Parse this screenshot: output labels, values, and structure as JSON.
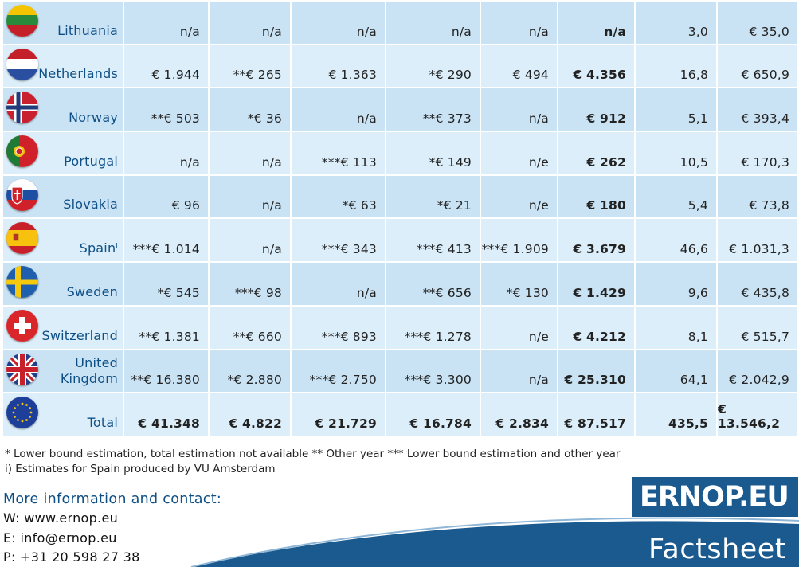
{
  "rows": [
    {
      "country": "Lithuania",
      "c1": "n/a",
      "c2": "n/a",
      "c3": "n/a",
      "c4": "n/a",
      "c5": "n/a",
      "c6": "n/a",
      "c7": "3,0",
      "c8": "€ 35,0"
    },
    {
      "country": "Netherlands",
      "c1": "€ 1.944",
      "c2": "**€ 265",
      "c3": "€ 1.363",
      "c4": "*€ 290",
      "c5": "€ 494",
      "c6": "€ 4.356",
      "c7": "16,8",
      "c8": "€ 650,9"
    },
    {
      "country": "Norway",
      "c1": "**€ 503",
      "c2": "*€ 36",
      "c3": "n/a",
      "c4": "**€ 373",
      "c5": "n/a",
      "c6": "€ 912",
      "c7": "5,1",
      "c8": "€ 393,4"
    },
    {
      "country": "Portugal",
      "c1": "n/a",
      "c2": "n/a",
      "c3": "***€ 113",
      "c4": "*€ 149",
      "c5": "n/e",
      "c6": "€ 262",
      "c7": "10,5",
      "c8": "€ 170,3"
    },
    {
      "country": "Slovakia",
      "c1": "€ 96",
      "c2": "n/a",
      "c3": "*€ 63",
      "c4": "*€ 21",
      "c5": "n/e",
      "c6": "€ 180",
      "c7": "5,4",
      "c8": "€ 73,8"
    },
    {
      "country": "Spain",
      "sup": "i",
      "c1": "***€ 1.014",
      "c2": "n/a",
      "c3": "***€ 343",
      "c4": "***€ 413",
      "c5": "***€ 1.909",
      "c6": "€ 3.679",
      "c7": "46,6",
      "c8": "€ 1.031,3"
    },
    {
      "country": "Sweden",
      "c1": "*€ 545",
      "c2": "***€ 98",
      "c3": "n/a",
      "c4": "**€ 656",
      "c5": "*€ 130",
      "c6": "€ 1.429",
      "c7": "9,6",
      "c8": "€ 435,8"
    },
    {
      "country": "Switzerland",
      "c1": "**€ 1.381",
      "c2": "**€ 660",
      "c3": "***€ 893",
      "c4": "***€ 1.278",
      "c5": "n/e",
      "c6": "€ 4.212",
      "c7": "8,1",
      "c8": "€ 515,7"
    },
    {
      "country_line1": "United",
      "country_line2": "Kingdom",
      "c1": "**€ 16.380",
      "c2": "*€ 2.880",
      "c3": "***€ 2.750",
      "c4": "***€ 3.300",
      "c5": "n/a",
      "c6": "€ 25.310",
      "c7": "64,1",
      "c8": "€ 2.042,9"
    },
    {
      "country": "Total",
      "c1": "€ 41.348",
      "c2": "€ 4.822",
      "c3": "€ 21.729",
      "c4": "€ 16.784",
      "c5": "€ 2.834",
      "c6": "€ 87.517",
      "c7": "435,5",
      "c8": "€ 13.546,2"
    }
  ],
  "notes": {
    "line1": "* Lower bound estimation, total estimation not available  ** Other year  *** Lower bound estimation and other year",
    "line2": "i) Estimates for Spain produced by VU Amsterdam"
  },
  "contact": {
    "title": "More information and contact:",
    "web": "W: www.ernop.eu",
    "email": "E:  info@ernop.eu",
    "phone": "P:  +31 20 598 27 38"
  },
  "logo": "ERNOP.EU",
  "factsheet": "Factsheet",
  "colors": {
    "accent": "#0e4f86",
    "row_light": "#dbeef9",
    "row_dark": "#c9e3f4",
    "logo": "#1a5a8f"
  }
}
